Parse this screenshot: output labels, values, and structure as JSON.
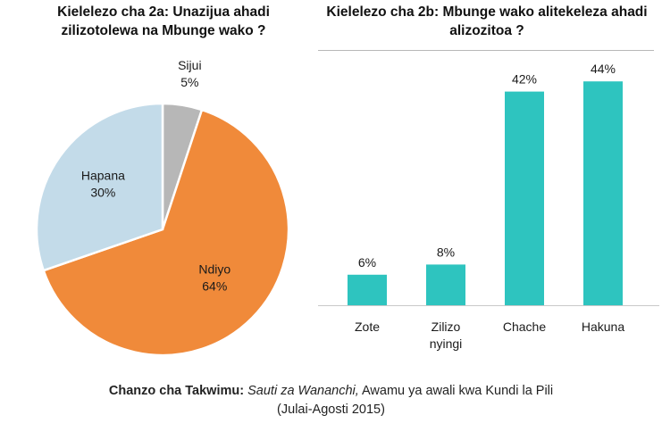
{
  "title_a": "Kielelezo cha 2a: Unazijua ahadi zilizotolewa na Mbunge wako ?",
  "title_b": "Kielelezo cha 2b: Mbunge wako alitekeleza ahadi alizozitoa ?",
  "chart_data": [
    {
      "type": "pie",
      "title": "Kielelezo cha 2a: Unazijua ahadi zilizotolewa na Mbunge wako ?",
      "slices": [
        {
          "label": "Sijui",
          "value": 5,
          "value_label": "5%",
          "color": "#b7b7b7"
        },
        {
          "label": "Ndiyo",
          "value": 64,
          "value_label": "64%",
          "color": "#f08a3a"
        },
        {
          "label": "Hapana",
          "value": 30,
          "value_label": "30%",
          "color": "#c3dbe9"
        }
      ]
    },
    {
      "type": "bar",
      "title": "Kielelezo cha 2b: Mbunge wako alitekeleza ahadi alizozitoa ?",
      "categories": [
        [
          "Zote"
        ],
        [
          "Zilizo",
          "nyingi"
        ],
        [
          "Chache"
        ],
        [
          "Hakuna"
        ]
      ],
      "values": [
        6,
        8,
        42,
        44
      ],
      "value_labels": [
        "6%",
        "8%",
        "42%",
        "44%"
      ],
      "color": "#2ec4bf",
      "ylim": [
        0,
        50
      ]
    }
  ],
  "footer": {
    "source_label": "Chanzo cha Takwimu:",
    "source_title": "Sauti za Wananchi,",
    "source_rest": "Awamu ya awali kwa Kundi la Pili",
    "dates": "(Julai-Agosti 2015)"
  }
}
